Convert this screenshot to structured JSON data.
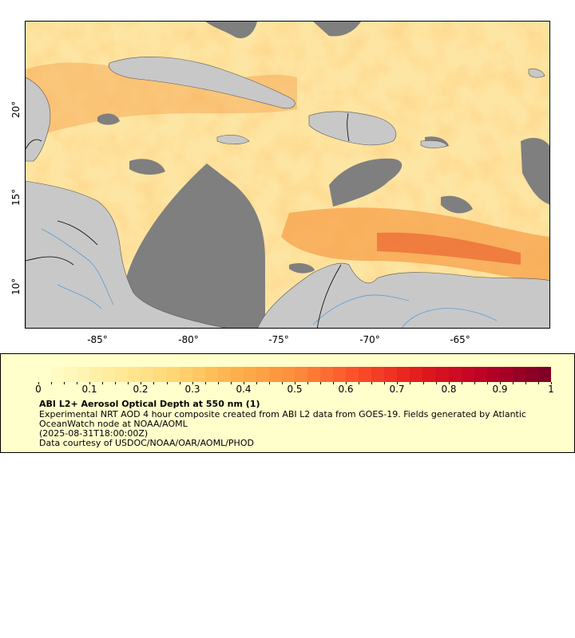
{
  "map": {
    "y_ticks": [
      "20°",
      "15°",
      "10°"
    ],
    "x_ticks": [
      "-85°",
      "-80°",
      "-75°",
      "-70°",
      "-65°"
    ],
    "colors": {
      "no_data": "#7f7f7f",
      "land": "#c8c8c8",
      "coast": "#555555",
      "rivers": "#5b9bd5",
      "borders": "#000000"
    }
  },
  "legend": {
    "colorbar_ticks": [
      "0",
      "0.1",
      "0.2",
      "0.3",
      "0.4",
      "0.5",
      "0.6",
      "0.7",
      "0.8",
      "0.9",
      "1"
    ],
    "colormap": [
      "#ffffcc",
      "#ffeda0",
      "#fed976",
      "#feb24c",
      "#fd8d3c",
      "#fc4e2a",
      "#e31a1c",
      "#bd0026",
      "#800026"
    ],
    "title": "ABI L2+ Aerosol Optical Depth at 550 nm (1)",
    "description": "Experimental NRT AOD 4 hour composite created from ABI L2 data from GOES-19. Fields generated by Atlantic OceanWatch node at NOAA/AOML",
    "timestamp": "(2025-08-31T18:00:00Z)",
    "credit": "Data courtesy of USDOC/NOAA/OAR/AOML/PHOD"
  }
}
